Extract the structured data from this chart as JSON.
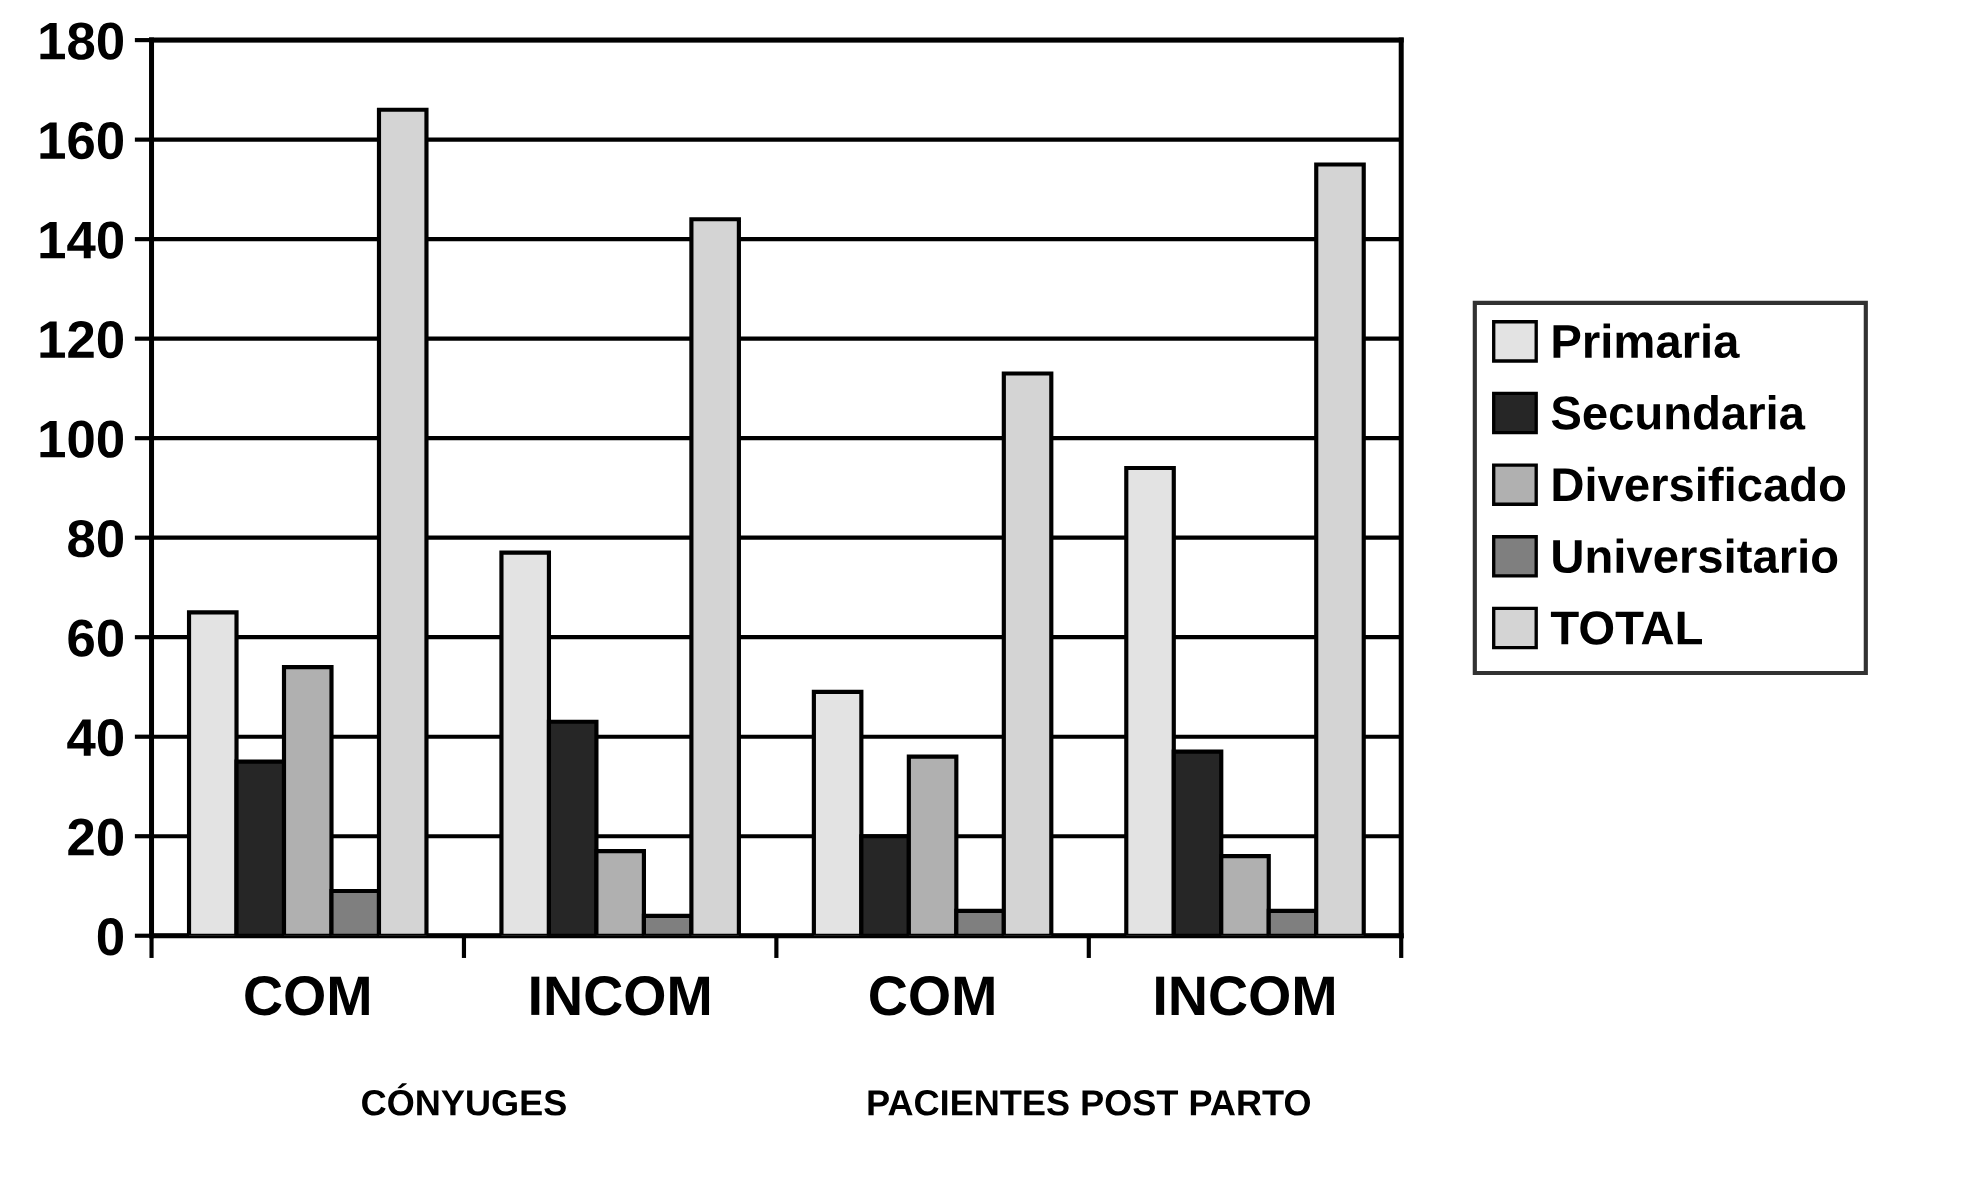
{
  "chart_data": {
    "type": "bar",
    "categories": [
      "COM",
      "INCOM",
      "COM",
      "INCOM"
    ],
    "series": [
      {
        "name": "Primaria",
        "color": "#e3e3e3",
        "values": [
          65,
          77,
          49,
          94
        ]
      },
      {
        "name": "Secundaria",
        "color": "#262626",
        "values": [
          35,
          43,
          20,
          37
        ]
      },
      {
        "name": "Diversificado",
        "color": "#b0b0b0",
        "values": [
          54,
          17,
          36,
          16
        ]
      },
      {
        "name": "Universitario",
        "color": "#7f7f7f",
        "values": [
          9,
          4,
          5,
          5
        ]
      },
      {
        "name": "TOTAL",
        "color": "#d4d4d4",
        "values": [
          166,
          144,
          113,
          155
        ]
      }
    ],
    "ylim": [
      0,
      180
    ],
    "yticks": [
      0,
      20,
      40,
      60,
      80,
      100,
      120,
      140,
      160,
      180
    ],
    "grid": "y",
    "legend": "right",
    "annotations": [
      "CÓNYUGES",
      "PACIENTES POST PARTO"
    ]
  }
}
